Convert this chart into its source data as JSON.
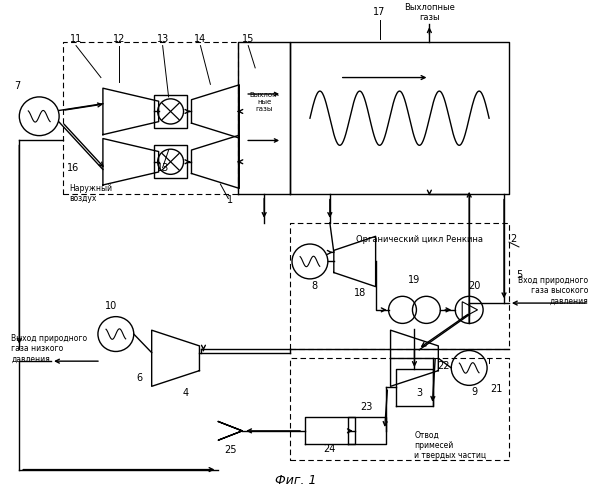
{
  "figsize": [
    5.92,
    5.0
  ],
  "dpi": 100,
  "bg": "#ffffff",
  "lw": 1.0,
  "lw_thick": 1.5,
  "fig_label": "Фиг. 1",
  "texts": {
    "vyhlopnye_top": "Выхлопные\nгазы",
    "vyhlopnye_box": "Выхлоп-\nные\nгазы",
    "organicheskiy": "Органический цикл Ренкина",
    "naruzhny": "Наружный\nвоздух",
    "vhod": "Вход природного\nгаза высокого\nдавления",
    "vyhod": "Выход природного\nгаза низкого\nдавления",
    "otvod": "Отвод\nпримесей\nи твердых частиц"
  }
}
